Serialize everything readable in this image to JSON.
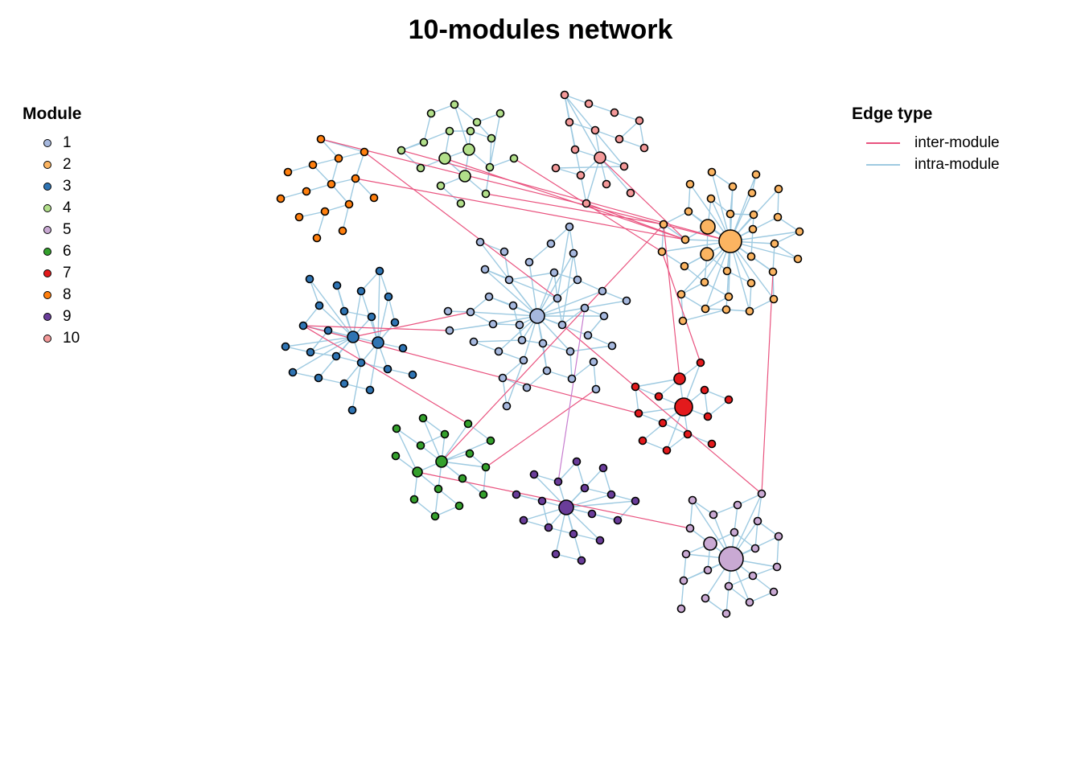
{
  "title": "10-modules network",
  "module_legend": {
    "title": "Module",
    "items": [
      {
        "label": "1",
        "color": "#a6b8de"
      },
      {
        "label": "2",
        "color": "#fbb461"
      },
      {
        "label": "3",
        "color": "#2f74b3"
      },
      {
        "label": "4",
        "color": "#b2df8a"
      },
      {
        "label": "5",
        "color": "#c9a9d3"
      },
      {
        "label": "6",
        "color": "#34a02c"
      },
      {
        "label": "7",
        "color": "#e31a1c"
      },
      {
        "label": "8",
        "color": "#ff7f0e"
      },
      {
        "label": "9",
        "color": "#6a3d9a"
      },
      {
        "label": "10",
        "color": "#f49999"
      }
    ]
  },
  "edge_legend": {
    "title": "Edge type",
    "items": [
      {
        "label": "inter-module",
        "color": "#e9537f"
      },
      {
        "label": "intra-module",
        "color": "#9ecae1"
      }
    ]
  }
}
